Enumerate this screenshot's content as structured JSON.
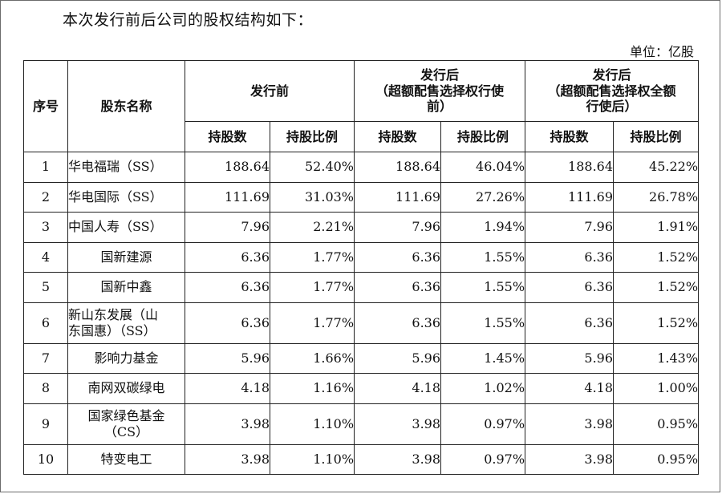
{
  "intro": "本次发行前后公司的股权结构如下：",
  "unit": "单位：亿股",
  "headers": {
    "seq": "序号",
    "name": "股东名称",
    "pre": "发行前",
    "post_a_line1": "发行后",
    "post_a_line2": "（超额配售选择权行使",
    "post_a_line3": "前）",
    "post_b_line1": "发行后",
    "post_b_line2": "（超额配售选择权全额",
    "post_b_line3": "行使后）",
    "shares": "持股数",
    "ratio": "持股比例"
  },
  "rows": [
    {
      "idx": "1",
      "name": "华电福瑞（SS）",
      "pre_shares": "188.64",
      "pre_ratio": "52.40%",
      "post1_shares": "188.64",
      "post1_ratio": "46.04%",
      "post2_shares": "188.64",
      "post2_ratio": "45.22%"
    },
    {
      "idx": "2",
      "name": "华电国际（SS）",
      "pre_shares": "111.69",
      "pre_ratio": "31.03%",
      "post1_shares": "111.69",
      "post1_ratio": "27.26%",
      "post2_shares": "111.69",
      "post2_ratio": "26.78%"
    },
    {
      "idx": "3",
      "name": "中国人寿（SS）",
      "pre_shares": "7.96",
      "pre_ratio": "2.21%",
      "post1_shares": "7.96",
      "post1_ratio": "1.94%",
      "post2_shares": "7.96",
      "post2_ratio": "1.91%"
    },
    {
      "idx": "4",
      "name": "国新建源",
      "pre_shares": "6.36",
      "pre_ratio": "1.77%",
      "post1_shares": "6.36",
      "post1_ratio": "1.55%",
      "post2_shares": "6.36",
      "post2_ratio": "1.52%"
    },
    {
      "idx": "5",
      "name": "国新中鑫",
      "pre_shares": "6.36",
      "pre_ratio": "1.77%",
      "post1_shares": "6.36",
      "post1_ratio": "1.55%",
      "post2_shares": "6.36",
      "post2_ratio": "1.52%"
    },
    {
      "idx": "6",
      "name_line1": "新山东发展（山",
      "name_line2": "东国惠）（SS）",
      "pre_shares": "6.36",
      "pre_ratio": "1.77%",
      "post1_shares": "6.36",
      "post1_ratio": "1.55%",
      "post2_shares": "6.36",
      "post2_ratio": "1.52%"
    },
    {
      "idx": "7",
      "name": "影响力基金",
      "pre_shares": "5.96",
      "pre_ratio": "1.66%",
      "post1_shares": "5.96",
      "post1_ratio": "1.45%",
      "post2_shares": "5.96",
      "post2_ratio": "1.43%"
    },
    {
      "idx": "8",
      "name": "南网双碳绿电",
      "pre_shares": "4.18",
      "pre_ratio": "1.16%",
      "post1_shares": "4.18",
      "post1_ratio": "1.02%",
      "post2_shares": "4.18",
      "post2_ratio": "1.00%"
    },
    {
      "idx": "9",
      "name_line1": "国家绿色基金",
      "name_line2": "（CS）",
      "pre_shares": "3.98",
      "pre_ratio": "1.10%",
      "post1_shares": "3.98",
      "post1_ratio": "0.97%",
      "post2_shares": "3.98",
      "post2_ratio": "0.95%"
    },
    {
      "idx": "10",
      "name": "特变电工",
      "pre_shares": "3.98",
      "pre_ratio": "1.10%",
      "post1_shares": "3.98",
      "post1_ratio": "0.97%",
      "post2_shares": "3.98",
      "post2_ratio": "0.95%"
    }
  ]
}
